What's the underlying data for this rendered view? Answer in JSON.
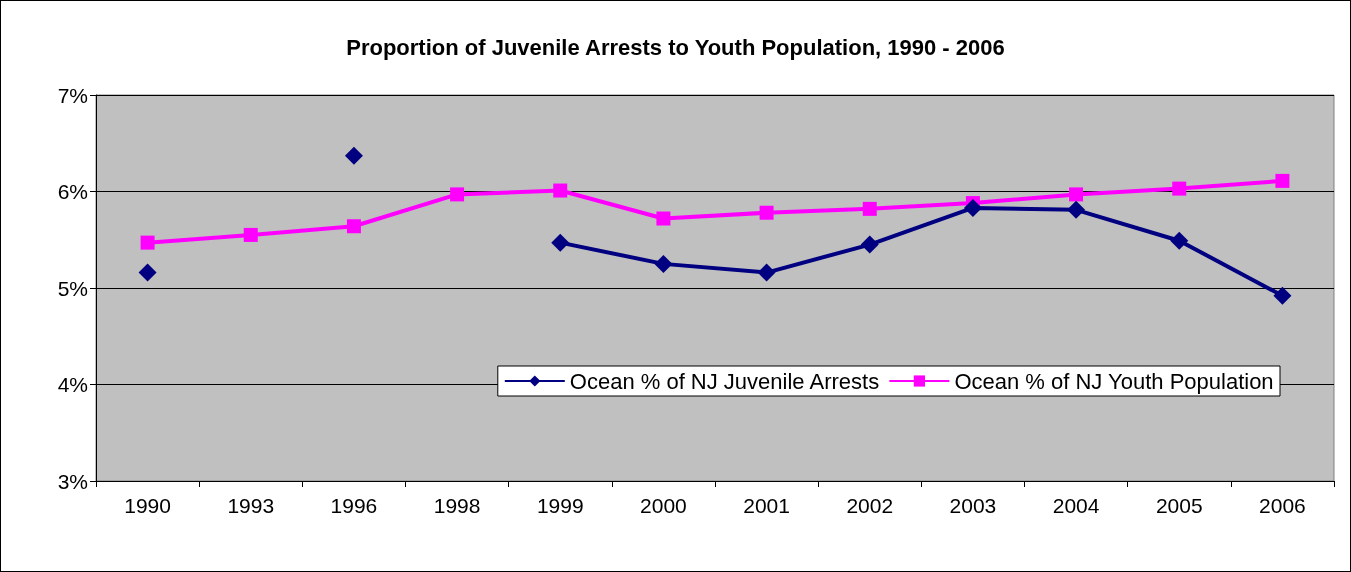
{
  "chart_data": {
    "type": "line",
    "title": "Proportion of Juvenile Arrests to Youth Population, 1990 - 2006",
    "categories": [
      "1990",
      "1993",
      "1996",
      "1998",
      "1999",
      "2000",
      "2001",
      "2002",
      "2003",
      "2004",
      "2005",
      "2006"
    ],
    "series": [
      {
        "name": "Ocean % of NJ Juvenile Arrests",
        "color": "#000080",
        "marker": "diamond",
        "values": [
          5.16,
          null,
          6.37,
          null,
          5.47,
          5.25,
          5.16,
          5.45,
          5.83,
          5.81,
          5.49,
          4.92
        ]
      },
      {
        "name": "Ocean % of NJ Youth Population",
        "color": "#ff00ff",
        "marker": "square",
        "values": [
          5.47,
          5.55,
          5.64,
          5.97,
          6.01,
          5.72,
          5.78,
          5.82,
          5.88,
          5.97,
          6.03,
          6.11
        ]
      }
    ],
    "ylim": [
      3,
      7
    ],
    "yticks": [
      {
        "value": 3,
        "label": "3%"
      },
      {
        "value": 4,
        "label": "4%"
      },
      {
        "value": 5,
        "label": "5%"
      },
      {
        "value": 6,
        "label": "6%"
      },
      {
        "value": 7,
        "label": "7%"
      }
    ],
    "grid": "y",
    "legend": "bottom right"
  }
}
